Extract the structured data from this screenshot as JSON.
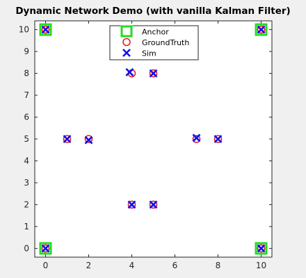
{
  "chart_data": {
    "type": "scatter",
    "title": "Dynamic Network Demo (with vanilla Kalman Filter)",
    "xlabel": "",
    "ylabel": "",
    "xlim": [
      -0.5,
      10.5
    ],
    "ylim": [
      -0.4,
      10.4
    ],
    "xticks": [
      "0",
      "2",
      "4",
      "6",
      "8",
      "10"
    ],
    "yticks": [
      "0",
      "1",
      "2",
      "3",
      "4",
      "5",
      "6",
      "7",
      "8",
      "9",
      "10"
    ],
    "grid": false,
    "legend_position": "top-center",
    "series": [
      {
        "name": "Anchor",
        "marker": "square",
        "color": "#22dd22",
        "points": [
          [
            0,
            10
          ],
          [
            10,
            10
          ],
          [
            0,
            0
          ],
          [
            10,
            0
          ]
        ]
      },
      {
        "name": "GroundTruth",
        "marker": "circle",
        "color": "#e02020",
        "points": [
          [
            4,
            8
          ],
          [
            5,
            8
          ],
          [
            1,
            5
          ],
          [
            2,
            5
          ],
          [
            7,
            5
          ],
          [
            8,
            5
          ],
          [
            4,
            2
          ],
          [
            5,
            2
          ],
          [
            0,
            10
          ],
          [
            10,
            10
          ],
          [
            0,
            0
          ],
          [
            10,
            0
          ]
        ]
      },
      {
        "name": "Sim",
        "marker": "x",
        "color": "#1010ee",
        "points": [
          [
            3.9,
            8.05
          ],
          [
            5,
            8
          ],
          [
            1,
            5
          ],
          [
            2,
            4.95
          ],
          [
            7,
            5.05
          ],
          [
            8,
            5
          ],
          [
            4,
            2
          ],
          [
            5,
            2
          ],
          [
            0,
            10
          ],
          [
            10,
            10
          ],
          [
            0,
            0
          ],
          [
            10,
            0
          ]
        ]
      }
    ]
  }
}
